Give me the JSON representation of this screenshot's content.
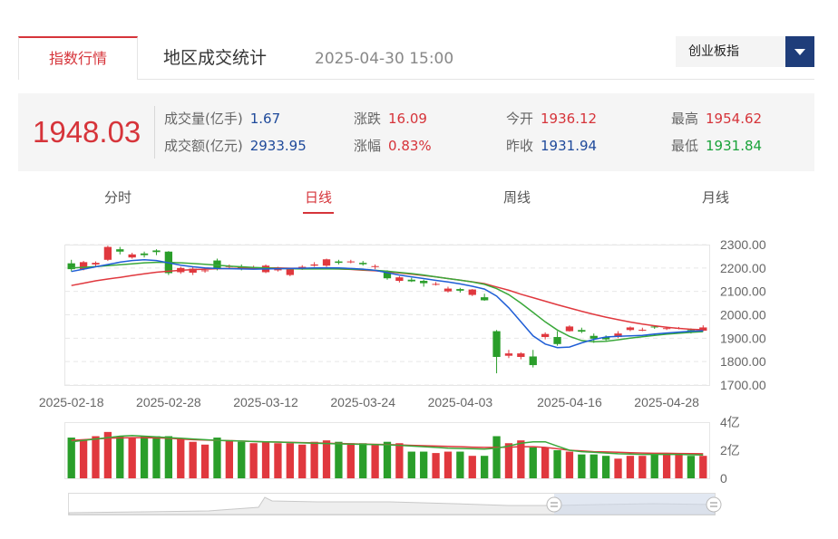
{
  "tabs": {
    "active": "指数行情",
    "stats": "地区成交统计",
    "datetime": "2025-04-30 15:00"
  },
  "index_select": {
    "selected": "创业板指"
  },
  "quote": {
    "price": "1948.03",
    "volume_label": "成交量(亿手)",
    "volume": "1.67",
    "amount_label": "成交额(亿元)",
    "amount": "2933.95",
    "change_label": "涨跌",
    "change": "16.09",
    "pct_label": "涨幅",
    "pct": "0.83%",
    "open_label": "今开",
    "open": "1936.12",
    "prev_label": "昨收",
    "prev": "1931.94",
    "high_label": "最高",
    "high": "1954.62",
    "low_label": "最低",
    "low": "1931.84"
  },
  "periods": [
    "分时",
    "日线",
    "周线",
    "月线"
  ],
  "active_period": "日线",
  "colors": {
    "up": "#e0383e",
    "down": "#2a9e2a",
    "ma5": "#1f5ed6",
    "ma10": "#3aa83a",
    "ma20": "#e0383e"
  },
  "chart_data": {
    "type": "candlestick",
    "price_yticks": [
      "2300.00",
      "2200.00",
      "2100.00",
      "2000.00",
      "1900.00",
      "1800.00",
      "1700.00"
    ],
    "price_ylim": [
      1700,
      2300
    ],
    "x_labels": [
      "2025-02-18",
      "2025-02-28",
      "2025-03-12",
      "2025-03-24",
      "2025-04-03",
      "2025-04-16",
      "2025-04-28"
    ],
    "x_label_index": [
      0,
      8,
      16,
      24,
      32,
      41,
      49
    ],
    "candles": [
      [
        2220,
        2195,
        2235,
        2185
      ],
      [
        2195,
        2225,
        2230,
        2190
      ],
      [
        2215,
        2222,
        2228,
        2205
      ],
      [
        2235,
        2290,
        2295,
        2230
      ],
      [
        2280,
        2270,
        2290,
        2258
      ],
      [
        2245,
        2258,
        2265,
        2240
      ],
      [
        2262,
        2255,
        2270,
        2245
      ],
      [
        2275,
        2268,
        2280,
        2255
      ],
      [
        2270,
        2178,
        2272,
        2170
      ],
      [
        2182,
        2200,
        2205,
        2175
      ],
      [
        2180,
        2197,
        2205,
        2170
      ],
      [
        2188,
        2190,
        2200,
        2180
      ],
      [
        2232,
        2198,
        2240,
        2190
      ],
      [
        2205,
        2208,
        2215,
        2198
      ],
      [
        2205,
        2198,
        2215,
        2190
      ],
      [
        2200,
        2203,
        2210,
        2195
      ],
      [
        2182,
        2210,
        2215,
        2178
      ],
      [
        2190,
        2196,
        2205,
        2185
      ],
      [
        2170,
        2195,
        2200,
        2165
      ],
      [
        2200,
        2205,
        2212,
        2192
      ],
      [
        2210,
        2215,
        2225,
        2205
      ],
      [
        2210,
        2237,
        2240,
        2205
      ],
      [
        2228,
        2222,
        2235,
        2215
      ],
      [
        2225,
        2228,
        2235,
        2220
      ],
      [
        2222,
        2216,
        2230,
        2210
      ],
      [
        2205,
        2208,
        2215,
        2195
      ],
      [
        2185,
        2156,
        2190,
        2150
      ],
      [
        2145,
        2160,
        2165,
        2138
      ],
      [
        2150,
        2143,
        2158,
        2140
      ],
      [
        2145,
        2135,
        2150,
        2120
      ],
      [
        2130,
        2132,
        2140,
        2125
      ],
      [
        2100,
        2112,
        2120,
        2095
      ],
      [
        2110,
        2103,
        2115,
        2095
      ],
      [
        2085,
        2108,
        2110,
        2080
      ],
      [
        2075,
        2062,
        2090,
        2060
      ],
      [
        1930,
        1820,
        1935,
        1750
      ],
      [
        1825,
        1835,
        1850,
        1815
      ],
      [
        1820,
        1835,
        1840,
        1810
      ],
      [
        1822,
        1785,
        1850,
        1775
      ],
      [
        1905,
        1918,
        1925,
        1895
      ],
      [
        1905,
        1875,
        1930,
        1868
      ],
      [
        1930,
        1950,
        1955,
        1928
      ],
      [
        1935,
        1928,
        1945,
        1922
      ],
      [
        1910,
        1898,
        1920,
        1880
      ],
      [
        1905,
        1895,
        1912,
        1890
      ],
      [
        1905,
        1920,
        1930,
        1900
      ],
      [
        1935,
        1946,
        1950,
        1930
      ],
      [
        1935,
        1936,
        1945,
        1930
      ],
      [
        1950,
        1946,
        1955,
        1940
      ],
      [
        1940,
        1943,
        1950,
        1935
      ],
      [
        1940,
        1944,
        1948,
        1938
      ],
      [
        1935,
        1926,
        1942,
        1920
      ],
      [
        1932,
        1946,
        1955,
        1930
      ]
    ],
    "ma5": [
      2185,
      2195,
      2205,
      2215,
      2225,
      2232,
      2235,
      2232,
      2222,
      2212,
      2205,
      2200,
      2198,
      2197,
      2196,
      2195,
      2196,
      2197,
      2198,
      2199,
      2200,
      2201,
      2200,
      2198,
      2195,
      2190,
      2180,
      2170,
      2162,
      2155,
      2147,
      2140,
      2132,
      2122,
      2110,
      2080,
      2030,
      1970,
      1910,
      1875,
      1860,
      1862,
      1880,
      1895,
      1905,
      1908,
      1910,
      1912,
      1918,
      1922,
      1926,
      1930,
      1932
    ],
    "ma10": [
      2200,
      2203,
      2206,
      2210,
      2214,
      2218,
      2222,
      2224,
      2224,
      2222,
      2219,
      2216,
      2212,
      2208,
      2205,
      2202,
      2200,
      2198,
      2197,
      2196,
      2196,
      2196,
      2196,
      2195,
      2193,
      2190,
      2186,
      2181,
      2176,
      2170,
      2162,
      2155,
      2148,
      2140,
      2130,
      2112,
      2086,
      2050,
      2010,
      1970,
      1935,
      1908,
      1890,
      1885,
      1887,
      1893,
      1900,
      1906,
      1912,
      1917,
      1921,
      1925,
      1928
    ],
    "ma20": [
      2125,
      2135,
      2145,
      2153,
      2160,
      2168,
      2175,
      2182,
      2186,
      2190,
      2193,
      2195,
      2197,
      2198,
      2199,
      2200,
      2200,
      2200,
      2199,
      2199,
      2198,
      2197,
      2196,
      2194,
      2191,
      2188,
      2184,
      2179,
      2174,
      2168,
      2162,
      2155,
      2148,
      2141,
      2133,
      2119,
      2105,
      2088,
      2073,
      2058,
      2043,
      2029,
      2015,
      2002,
      1990,
      1979,
      1969,
      1960,
      1953,
      1947,
      1942,
      1938,
      1936
    ],
    "vol_yticks": [
      "4亿",
      "2亿",
      "0"
    ],
    "vol_ylim": [
      0,
      4
    ],
    "volume": [
      2.9,
      2.7,
      3.0,
      3.3,
      3.0,
      2.9,
      3.0,
      3.0,
      3.0,
      2.8,
      2.6,
      2.4,
      2.9,
      2.7,
      2.6,
      2.5,
      2.6,
      2.5,
      2.5,
      2.4,
      2.6,
      2.7,
      2.6,
      2.5,
      2.5,
      2.4,
      2.6,
      2.5,
      1.9,
      1.9,
      1.8,
      1.9,
      1.9,
      1.6,
      1.6,
      3.0,
      2.5,
      2.7,
      2.2,
      2.2,
      2.0,
      1.9,
      1.7,
      1.7,
      1.6,
      1.4,
      1.6,
      1.6,
      1.8,
      1.7,
      1.7,
      1.6,
      1.6
    ],
    "vol_ma1": [
      2.6,
      2.7,
      2.8,
      2.9,
      3.0,
      3.05,
      3.0,
      2.95,
      2.9,
      2.85,
      2.8,
      2.75,
      2.7,
      2.68,
      2.65,
      2.62,
      2.6,
      2.58,
      2.55,
      2.52,
      2.5,
      2.48,
      2.45,
      2.43,
      2.42,
      2.4,
      2.38,
      2.35,
      2.3,
      2.25,
      2.2,
      2.15,
      2.12,
      2.1,
      2.08,
      2.15,
      2.3,
      2.5,
      2.6,
      2.6,
      2.3,
      2.0,
      1.9,
      1.85,
      1.8,
      1.75,
      1.72,
      1.7,
      1.7,
      1.7,
      1.7,
      1.68,
      1.66
    ],
    "vol_ma2": [
      2.7,
      2.75,
      2.8,
      2.85,
      2.88,
      2.9,
      2.9,
      2.88,
      2.85,
      2.8,
      2.75,
      2.72,
      2.7,
      2.68,
      2.65,
      2.62,
      2.6,
      2.58,
      2.56,
      2.54,
      2.52,
      2.5,
      2.48,
      2.46,
      2.44,
      2.42,
      2.4,
      2.38,
      2.35,
      2.32,
      2.3,
      2.28,
      2.25,
      2.22,
      2.2,
      2.2,
      2.22,
      2.25,
      2.25,
      2.2,
      2.1,
      2.0,
      1.95,
      1.9,
      1.88,
      1.85,
      1.82,
      1.8,
      1.78,
      1.78,
      1.77,
      1.76,
      1.75
    ]
  }
}
